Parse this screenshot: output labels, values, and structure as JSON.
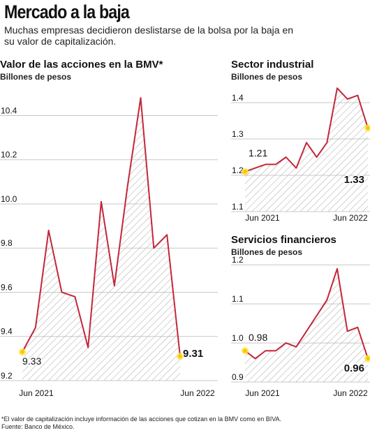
{
  "header": {
    "title": "Mercado a la baja",
    "subtitle": "Muchas empresas decidieron deslistarse de la bolsa por la baja en su valor de capitalización."
  },
  "colors": {
    "line": "#c4263a",
    "hatch": "#b4b4b4",
    "grid": "#c8c8c8",
    "marker": "#ffe23a",
    "text": "#111111"
  },
  "chart_data": [
    {
      "type": "area",
      "title": "Valor de las acciones en la BMV*",
      "ylabel": "Billones de pesos",
      "x_tick_labels": [
        "Jun 2021",
        "Jun 2022"
      ],
      "y_ticks": [
        9.2,
        9.4,
        9.6,
        9.8,
        10.0,
        10.2,
        10.4
      ],
      "y_tick_labels": [
        "9.2",
        "9.4",
        "9.6",
        "9.8",
        "10.0",
        "10.2",
        "10.4"
      ],
      "ylim": [
        9.2,
        10.55
      ],
      "grid": "horizontal",
      "values": [
        9.33,
        9.44,
        9.88,
        9.6,
        9.58,
        9.35,
        10.01,
        9.63,
        10.08,
        10.48,
        9.8,
        9.86,
        9.31
      ],
      "annotations": [
        {
          "index": 0,
          "label": "9.33",
          "bold": false
        },
        {
          "index": 12,
          "label": "9.31",
          "bold": true
        }
      ]
    },
    {
      "type": "area",
      "title": "Sector industrial",
      "ylabel": "Billones de pesos",
      "x_tick_labels": [
        "Jun 2021",
        "Jun 2022"
      ],
      "y_ticks": [
        1.1,
        1.2,
        1.3,
        1.4
      ],
      "y_tick_labels": [
        "1.1",
        "1.2",
        "1.3",
        "1.4"
      ],
      "ylim": [
        1.1,
        1.45
      ],
      "grid": "horizontal",
      "values": [
        1.21,
        1.22,
        1.23,
        1.23,
        1.25,
        1.22,
        1.29,
        1.25,
        1.29,
        1.44,
        1.41,
        1.42,
        1.33
      ],
      "annotations": [
        {
          "index": 0,
          "label": "1.21",
          "bold": false
        },
        {
          "index": 12,
          "label": "1.33",
          "bold": true
        }
      ]
    },
    {
      "type": "area",
      "title": "Servicios financieros",
      "ylabel": "Billones de pesos",
      "x_tick_labels": [
        "Jun 2021",
        "Jun 2022"
      ],
      "y_ticks": [
        0.9,
        1.0,
        1.1,
        1.2
      ],
      "y_tick_labels": [
        "0.9",
        "1.0",
        "1.1",
        "1.2"
      ],
      "ylim": [
        0.9,
        1.22
      ],
      "grid": "horizontal",
      "values": [
        0.98,
        0.96,
        0.98,
        0.98,
        1.0,
        0.99,
        1.03,
        1.07,
        1.11,
        1.19,
        1.03,
        1.04,
        0.96
      ],
      "annotations": [
        {
          "index": 0,
          "label": "0.98",
          "bold": false
        },
        {
          "index": 12,
          "label": "0.96",
          "bold": true
        }
      ]
    }
  ],
  "footnote": {
    "line1": "*El valor de capitalización incluye información de las acciones que cotizan en la BMV como en BIVA.",
    "line2": "Fuente: Banco de México."
  }
}
